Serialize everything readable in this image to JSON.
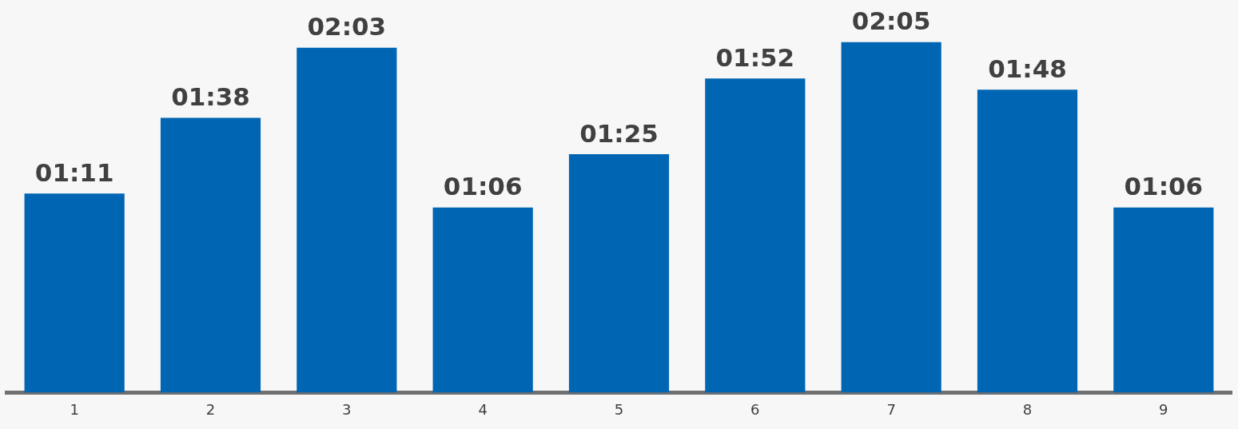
{
  "chart_data": {
    "type": "bar",
    "categories": [
      "1",
      "2",
      "3",
      "4",
      "5",
      "6",
      "7",
      "8",
      "9"
    ],
    "values": [
      71,
      98,
      123,
      66,
      85,
      112,
      125,
      108,
      66
    ],
    "value_labels": [
      "01:11",
      "01:38",
      "02:03",
      "01:06",
      "01:25",
      "01:52",
      "02:05",
      "01:48",
      "01:06"
    ],
    "color": "#0066b3",
    "tick_labels": "x",
    "grid": false,
    "legend": false
  }
}
